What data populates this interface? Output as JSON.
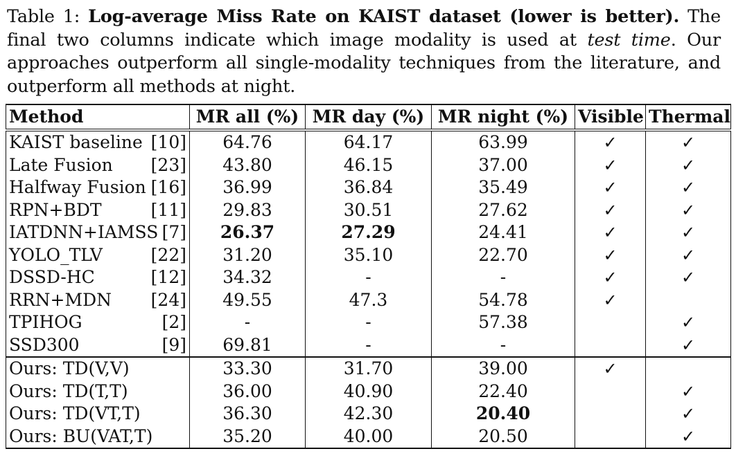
{
  "caption": {
    "label": "Table 1:",
    "bold_title": "Log-average Miss Rate on KAIST dataset (lower is better).",
    "text_1": "The final two columns indicate which image modality is used at",
    "text_italic": "test time",
    "text_2": ". Our approaches outperform all single-modality techniques from the literature, and outperform all methods at night."
  },
  "table": {
    "headers": [
      "Method",
      "MR all (%)",
      "MR day (%)",
      "MR night (%)",
      "Visible",
      "Thermal"
    ],
    "check_glyph": "✓",
    "rows": [
      {
        "name": "KAIST baseline",
        "ref": "[10]",
        "all": "64.76",
        "day": "64.17",
        "night": "63.99",
        "visible": "✓",
        "thermal": "✓"
      },
      {
        "name": "Late Fusion",
        "ref": "[23]",
        "all": "43.80",
        "day": "46.15",
        "night": "37.00",
        "visible": "✓",
        "thermal": "✓"
      },
      {
        "name": "Halfway Fusion",
        "ref": "[16]",
        "all": "36.99",
        "day": "36.84",
        "night": "35.49",
        "visible": "✓",
        "thermal": "✓"
      },
      {
        "name": "RPN+BDT",
        "ref": "[11]",
        "all": "29.83",
        "day": "30.51",
        "night": "27.62",
        "visible": "✓",
        "thermal": "✓"
      },
      {
        "name": "IATDNN+IAMSS",
        "ref": "[7]",
        "all": "26.37",
        "day": "27.29",
        "night": "24.41",
        "visible": "✓",
        "thermal": "✓",
        "bold_all": true,
        "bold_day": true
      },
      {
        "name": "YOLO_TLV",
        "ref": "[22]",
        "all": "31.20",
        "day": "35.10",
        "night": "22.70",
        "visible": "✓",
        "thermal": "✓"
      },
      {
        "name": "DSSD-HC",
        "ref": "[12]",
        "all": "34.32",
        "day": "-",
        "night": "-",
        "visible": "✓",
        "thermal": "✓"
      },
      {
        "name": "RRN+MDN",
        "ref": "[24]",
        "all": "49.55",
        "day": "47.3",
        "night": "54.78",
        "visible": "✓",
        "thermal": ""
      },
      {
        "name": "TPIHOG",
        "ref": "[2]",
        "all": "-",
        "day": "-",
        "night": "57.38",
        "visible": "",
        "thermal": "✓"
      },
      {
        "name": "SSD300",
        "ref": "[9]",
        "all": "69.81",
        "day": "-",
        "night": "-",
        "visible": "",
        "thermal": "✓"
      },
      {
        "name": "Ours: TD(V,V)",
        "ref": "",
        "all": "33.30",
        "day": "31.70",
        "night": "39.00",
        "visible": "✓",
        "thermal": "",
        "group_start": true
      },
      {
        "name": "Ours: TD(T,T)",
        "ref": "",
        "all": "36.00",
        "day": "40.90",
        "night": "22.40",
        "visible": "",
        "thermal": "✓"
      },
      {
        "name": "Ours: TD(VT,T)",
        "ref": "",
        "all": "36.30",
        "day": "42.30",
        "night": "20.40",
        "visible": "",
        "thermal": "✓",
        "bold_night": true
      },
      {
        "name": "Ours: BU(VAT,T)",
        "ref": "",
        "all": "35.20",
        "day": "40.00",
        "night": "20.50",
        "visible": "",
        "thermal": "✓"
      }
    ]
  }
}
